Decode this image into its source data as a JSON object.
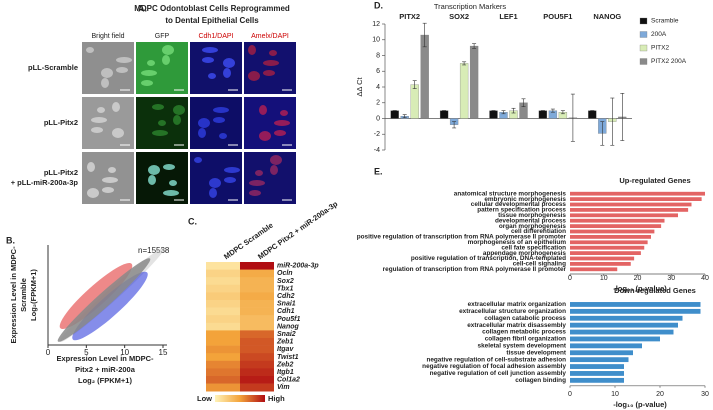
{
  "figure": {
    "panel_a": {
      "label": "A.",
      "title": [
        "MDPC Odontoblast Cells Reprogrammed",
        "to Dental Epithelial Cells"
      ],
      "columns": [
        "Bright field",
        "GFP",
        "Cdh1/DAPI",
        "Amelx/DAPI"
      ],
      "rows": [
        [
          "pLL-Scramble"
        ],
        [
          "pLL-Pitx2"
        ],
        [
          "pLL-Pitx2",
          "+ pLL-miR-200a-3p"
        ]
      ]
    },
    "panel_b": {
      "label": "B.",
      "n_label": "n=15538",
      "ylabel": [
        "Expression Level in MDPC-",
        "Scramble",
        "Log₂(FPKM+1)"
      ],
      "xlabel": [
        "Expression Level in MDPC-",
        "Pitx2 + miR-200a",
        "Log₂ (FPKM+1)"
      ],
      "xlim": [
        0,
        15
      ],
      "xticks": [
        0,
        5,
        10,
        15
      ]
    },
    "panel_c": {
      "label": "C.",
      "columns": [
        "MDPC Scramble",
        "MDPC Pitx2 + miR-200a-3p"
      ],
      "genes": [
        "miR-200a-3p",
        "Ocln",
        "Sox2",
        "Tbx1",
        "Cdh2",
        "Snai1",
        "Cdh1",
        "Pou5f1",
        "Nanog",
        "Snai2",
        "Zeb1",
        "Itgav",
        "Twist1",
        "Zeb2",
        "Itgb1",
        "Col1a2",
        "Vim"
      ],
      "values": [
        [
          0.1,
          1.0
        ],
        [
          0.2,
          0.45
        ],
        [
          0.15,
          0.4
        ],
        [
          0.2,
          0.4
        ],
        [
          0.25,
          0.45
        ],
        [
          0.2,
          0.4
        ],
        [
          0.15,
          0.4
        ],
        [
          0.2,
          0.35
        ],
        [
          0.15,
          0.35
        ],
        [
          0.5,
          0.7
        ],
        [
          0.5,
          0.75
        ],
        [
          0.55,
          0.75
        ],
        [
          0.5,
          0.8
        ],
        [
          0.6,
          0.85
        ],
        [
          0.65,
          0.9
        ],
        [
          0.7,
          0.95
        ],
        [
          0.55,
          0.85
        ]
      ],
      "colorscale": [
        "#fff3b8",
        "#f3a33a",
        "#b00d12"
      ],
      "legend_low": "Low",
      "legend_high": "High"
    },
    "panel_d_label": "D.",
    "panel_e_label": "E."
  },
  "chart_data": [
    {
      "type": "bar",
      "title": "Transcription Markers",
      "ylabel": "ΔΔ Ct",
      "categories": [
        "PITX2",
        "SOX2",
        "LEF1",
        "POU5F1",
        "NANOG"
      ],
      "series": [
        {
          "name": "Scramble",
          "color": "#111111",
          "values": [
            1,
            1,
            1,
            1,
            1
          ],
          "errors": [
            0,
            0,
            0,
            0,
            0
          ]
        },
        {
          "name": "200A",
          "color": "#7ea9d9",
          "values": [
            0.3,
            -0.8,
            0.8,
            1,
            -1.9
          ],
          "errors": [
            0.2,
            0.4,
            0.2,
            0.2,
            1.5
          ]
        },
        {
          "name": "PITX2",
          "color": "#d8ecb6",
          "values": [
            4.3,
            7,
            1,
            0.8,
            -0.4
          ],
          "errors": [
            0.5,
            0.2,
            0.3,
            0.2,
            3
          ]
        },
        {
          "name": "PITX2 200A",
          "color": "#8a8a8a",
          "values": [
            10.6,
            9.2,
            2,
            0.1,
            0.2
          ],
          "errors": [
            1.5,
            0.3,
            0.5,
            3,
            3
          ]
        }
      ],
      "ylim": [
        -4,
        12
      ],
      "yticks": [
        -4,
        -2,
        0,
        2,
        4,
        6,
        8,
        10,
        12
      ]
    },
    {
      "type": "hbar",
      "title": "Up-regulated Genes",
      "xlabel": "-log₁₀ (p-value)",
      "color": "#e36464",
      "categories": [
        "anatomical structure morphogenesis",
        "embryonic morphogenesis",
        "cellular developmental process",
        "pattern specification process",
        "tissue morphogenesis",
        "developmental process",
        "organ morphogenesis",
        "cell differentiation",
        "positive regulation of transcription from RNA polymerase II promoter",
        "morphogenesis of an epithelium",
        "cell fate specification",
        "appendage morphogenesis",
        "positive regulation of transcription, DNA-templated",
        "cell-cell signaling",
        "regulation of transcription from RNA polymerase II promoter"
      ],
      "values": [
        40,
        39,
        36,
        35,
        32,
        28,
        27,
        25,
        24,
        23,
        22,
        21,
        19,
        18,
        14
      ],
      "xlim": [
        0,
        40
      ],
      "xticks": [
        0,
        10,
        20,
        30,
        40
      ]
    },
    {
      "type": "hbar",
      "title": "Down-regulated Genes",
      "xlabel": "-log₁₀ (p-value)",
      "color": "#3f8ecb",
      "categories": [
        "extracellular matrix organization",
        "extracellular structure organization",
        "collagen catabolic process",
        "extracellular matrix disassembly",
        "collagen metabolic process",
        "collagen fibril organization",
        "skeletal system development",
        "tissue development",
        "negative regulation of cell-substrate adhesion",
        "negative regulation of focal adhesion assembly",
        "negative regulation of cell junction assembly",
        "collagen binding"
      ],
      "values": [
        29,
        29,
        25,
        24,
        23,
        20,
        16,
        14,
        13,
        12,
        12,
        12
      ],
      "xlim": [
        0,
        30
      ],
      "xticks": [
        0,
        10,
        20,
        30
      ]
    }
  ]
}
